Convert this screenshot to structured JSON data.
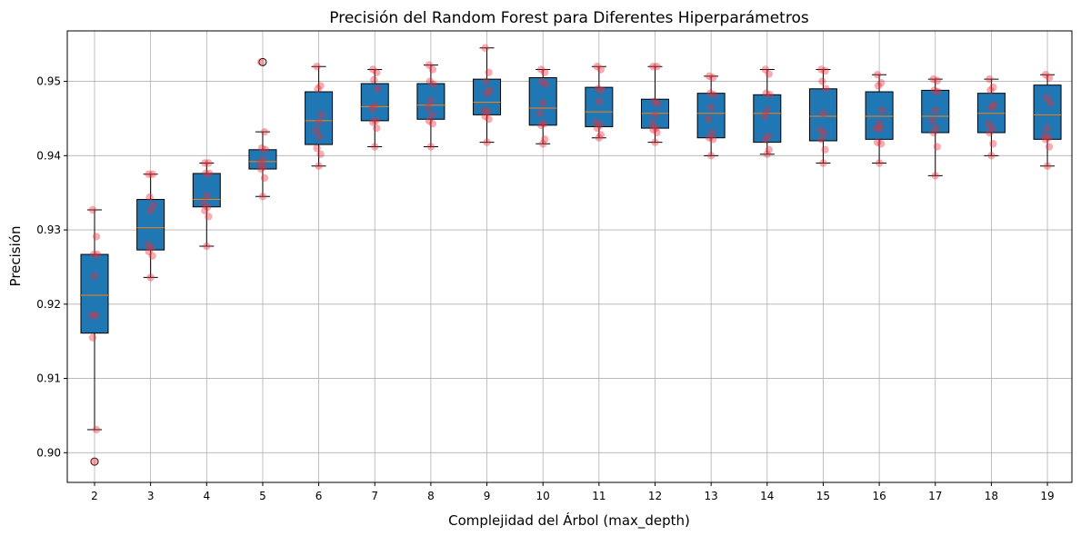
{
  "chart_data": {
    "type": "box",
    "title": "Precisión del Random Forest para Diferentes Hiperparámetros",
    "xlabel": "Complejidad del Árbol (max_depth)",
    "ylabel": "Precisión",
    "ylim": [
      0.896,
      0.9568
    ],
    "yticks": [
      0.9,
      0.91,
      0.92,
      0.93,
      0.94,
      0.95
    ],
    "ytick_labels": [
      "0.90",
      "0.91",
      "0.92",
      "0.93",
      "0.94",
      "0.95"
    ],
    "grid": true,
    "box_color": "#1f77b4",
    "median_color": "#ff7f0e",
    "point_color": "#e8303a",
    "categories": [
      "2",
      "3",
      "4",
      "5",
      "6",
      "7",
      "8",
      "9",
      "10",
      "11",
      "12",
      "13",
      "14",
      "15",
      "16",
      "17",
      "18",
      "19"
    ],
    "boxes": [
      {
        "q1": 0.9161,
        "median": 0.9212,
        "q3": 0.9267,
        "wlo": 0.9031,
        "whi": 0.9327,
        "outliers": [
          0.8988
        ]
      },
      {
        "q1": 0.9273,
        "median": 0.9303,
        "q3": 0.9341,
        "wlo": 0.9236,
        "whi": 0.9375,
        "outliers": []
      },
      {
        "q1": 0.9331,
        "median": 0.9341,
        "q3": 0.9376,
        "wlo": 0.9278,
        "whi": 0.939,
        "outliers": []
      },
      {
        "q1": 0.9382,
        "median": 0.9392,
        "q3": 0.9408,
        "wlo": 0.9345,
        "whi": 0.9432,
        "outliers": [
          0.9526
        ]
      },
      {
        "q1": 0.9415,
        "median": 0.9447,
        "q3": 0.9486,
        "wlo": 0.9386,
        "whi": 0.952,
        "outliers": []
      },
      {
        "q1": 0.9447,
        "median": 0.9466,
        "q3": 0.9497,
        "wlo": 0.9412,
        "whi": 0.9516,
        "outliers": []
      },
      {
        "q1": 0.9449,
        "median": 0.9468,
        "q3": 0.9497,
        "wlo": 0.9412,
        "whi": 0.9522,
        "outliers": []
      },
      {
        "q1": 0.9455,
        "median": 0.9472,
        "q3": 0.9503,
        "wlo": 0.9418,
        "whi": 0.9545,
        "outliers": []
      },
      {
        "q1": 0.9441,
        "median": 0.9464,
        "q3": 0.9505,
        "wlo": 0.9416,
        "whi": 0.9516,
        "outliers": []
      },
      {
        "q1": 0.9439,
        "median": 0.9459,
        "q3": 0.9492,
        "wlo": 0.9424,
        "whi": 0.952,
        "outliers": []
      },
      {
        "q1": 0.9437,
        "median": 0.9457,
        "q3": 0.9476,
        "wlo": 0.9418,
        "whi": 0.952,
        "outliers": []
      },
      {
        "q1": 0.9424,
        "median": 0.9457,
        "q3": 0.9484,
        "wlo": 0.94,
        "whi": 0.9507,
        "outliers": []
      },
      {
        "q1": 0.9418,
        "median": 0.9457,
        "q3": 0.9482,
        "wlo": 0.9402,
        "whi": 0.9516,
        "outliers": []
      },
      {
        "q1": 0.942,
        "median": 0.9453,
        "q3": 0.949,
        "wlo": 0.939,
        "whi": 0.9516,
        "outliers": []
      },
      {
        "q1": 0.9422,
        "median": 0.9453,
        "q3": 0.9486,
        "wlo": 0.939,
        "whi": 0.9509,
        "outliers": []
      },
      {
        "q1": 0.9431,
        "median": 0.9453,
        "q3": 0.9488,
        "wlo": 0.9373,
        "whi": 0.9503,
        "outliers": []
      },
      {
        "q1": 0.9431,
        "median": 0.9457,
        "q3": 0.9484,
        "wlo": 0.94,
        "whi": 0.9503,
        "outliers": []
      },
      {
        "q1": 0.9422,
        "median": 0.9455,
        "q3": 0.9495,
        "wlo": 0.9386,
        "whi": 0.9509,
        "outliers": []
      }
    ],
    "points": [
      [
        0.9327,
        0.9291,
        0.9267,
        0.9267,
        0.9238,
        0.9185,
        0.9185,
        0.9155,
        0.9031,
        0.8988
      ],
      [
        0.9375,
        0.9375,
        0.9344,
        0.9333,
        0.9326,
        0.928,
        0.9276,
        0.9271,
        0.9265,
        0.9236
      ],
      [
        0.939,
        0.939,
        0.9376,
        0.9376,
        0.9346,
        0.9336,
        0.9331,
        0.9326,
        0.9318,
        0.9278
      ],
      [
        0.9526,
        0.9432,
        0.941,
        0.9408,
        0.9395,
        0.939,
        0.9385,
        0.9382,
        0.937,
        0.9345
      ],
      [
        0.952,
        0.9494,
        0.949,
        0.9455,
        0.9445,
        0.9434,
        0.9426,
        0.941,
        0.9402,
        0.9386
      ],
      [
        0.9516,
        0.9512,
        0.9502,
        0.949,
        0.9467,
        0.9463,
        0.9447,
        0.9445,
        0.9437,
        0.9412
      ],
      [
        0.9522,
        0.9516,
        0.95,
        0.9496,
        0.9474,
        0.9465,
        0.9455,
        0.9447,
        0.9443,
        0.9412
      ],
      [
        0.9545,
        0.9512,
        0.95,
        0.9488,
        0.9484,
        0.9461,
        0.9459,
        0.9453,
        0.9449,
        0.9418
      ],
      [
        0.9516,
        0.9512,
        0.95,
        0.9496,
        0.9471,
        0.9457,
        0.9443,
        0.9441,
        0.9422,
        0.9416
      ],
      [
        0.952,
        0.9516,
        0.949,
        0.9488,
        0.9473,
        0.9445,
        0.9441,
        0.9437,
        0.9428,
        0.9424
      ],
      [
        0.952,
        0.952,
        0.9473,
        0.947,
        0.9455,
        0.9443,
        0.9437,
        0.9435,
        0.9431,
        0.9418
      ],
      [
        0.9507,
        0.9505,
        0.9484,
        0.9482,
        0.9465,
        0.9449,
        0.9431,
        0.9424,
        0.9422,
        0.94
      ],
      [
        0.9516,
        0.951,
        0.9484,
        0.9482,
        0.9461,
        0.9453,
        0.9426,
        0.9422,
        0.9408,
        0.9402
      ],
      [
        0.9516,
        0.9514,
        0.95,
        0.949,
        0.9457,
        0.9435,
        0.943,
        0.9422,
        0.9408,
        0.939
      ],
      [
        0.9509,
        0.9498,
        0.9494,
        0.9461,
        0.9443,
        0.9437,
        0.9436,
        0.9418,
        0.9416,
        0.939
      ],
      [
        0.9503,
        0.9501,
        0.9488,
        0.9486,
        0.9461,
        0.9447,
        0.9437,
        0.9431,
        0.9412,
        0.9373
      ],
      [
        0.9503,
        0.9492,
        0.9488,
        0.9468,
        0.9465,
        0.9443,
        0.9437,
        0.9431,
        0.9416,
        0.94
      ],
      [
        0.9509,
        0.9505,
        0.9478,
        0.9471,
        0.9437,
        0.9427,
        0.9424,
        0.9422,
        0.9412,
        0.9386
      ]
    ]
  }
}
